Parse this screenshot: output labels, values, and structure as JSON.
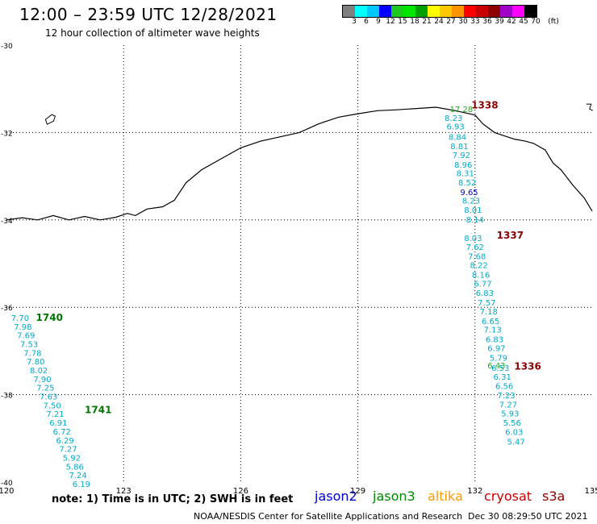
{
  "header": {
    "title": "12:00 – 23:59 UTC 12/28/2021",
    "subtitle": "12 hour collection of altimeter wave heights"
  },
  "legend": {
    "unit": "(ft)",
    "colors": [
      "#7f7f7f",
      "#00ffff",
      "#00c8ff",
      "#0000ff",
      "#1ec81e",
      "#00e600",
      "#00a000",
      "#ffff00",
      "#ffc800",
      "#ff9600",
      "#ff0000",
      "#c80000",
      "#8c0000",
      "#a000c8",
      "#ff00ff",
      "#000000"
    ],
    "labels": [
      "3",
      "6",
      "9",
      "12",
      "15",
      "18",
      "21",
      "24",
      "27",
      "30",
      "33",
      "36",
      "39",
      "42",
      "45",
      "70"
    ]
  },
  "axes": {
    "lon_labels": [
      "120",
      "123",
      "126",
      "129",
      "132",
      "135"
    ],
    "lat_labels": [
      "-30",
      "-32",
      "-34",
      "-36",
      "-38",
      "-40"
    ]
  },
  "passes": [
    {
      "id": "1338",
      "label_color": "#8b0000",
      "points": [
        {
          "lon": 131.65,
          "lat": -31.53,
          "v": "17.28",
          "c": "#22aa22"
        },
        {
          "lon": 131.45,
          "lat": -31.73,
          "v": "8.23",
          "c": "#00aacc"
        },
        {
          "lon": 131.5,
          "lat": -31.93,
          "v": "6.93",
          "c": "#00aacc"
        },
        {
          "lon": 131.55,
          "lat": -32.17,
          "v": "8.84",
          "c": "#00aacc"
        },
        {
          "lon": 131.6,
          "lat": -32.38,
          "v": "8.81",
          "c": "#00aacc"
        },
        {
          "lon": 131.65,
          "lat": -32.58,
          "v": "7.92",
          "c": "#00aacc"
        },
        {
          "lon": 131.7,
          "lat": -32.8,
          "v": "8.96",
          "c": "#00aacc"
        },
        {
          "lon": 131.75,
          "lat": -33.0,
          "v": "8.31",
          "c": "#00aacc"
        },
        {
          "lon": 131.8,
          "lat": -33.21,
          "v": "8.52",
          "c": "#00aacc"
        },
        {
          "lon": 131.85,
          "lat": -33.43,
          "v": "9.65",
          "c": "#0000cc"
        },
        {
          "lon": 131.9,
          "lat": -33.63,
          "v": "8.23",
          "c": "#00aacc"
        },
        {
          "lon": 131.95,
          "lat": -33.84,
          "v": "8.01",
          "c": "#00aacc"
        },
        {
          "lon": 132.0,
          "lat": -34.06,
          "v": "8.14",
          "c": "#00aacc"
        }
      ],
      "label": {
        "lon": 132.25,
        "lat": -31.45
      }
    },
    {
      "id": "1337",
      "label_color": "#8b0000",
      "points": [
        {
          "lon": 131.95,
          "lat": -34.48,
          "v": "8.03",
          "c": "#00aacc"
        },
        {
          "lon": 132.0,
          "lat": -34.69,
          "v": "7.62",
          "c": "#00aacc"
        },
        {
          "lon": 132.05,
          "lat": -34.9,
          "v": "7.68",
          "c": "#00aacc"
        },
        {
          "lon": 132.1,
          "lat": -35.1,
          "v": "8.22",
          "c": "#00aacc"
        },
        {
          "lon": 132.15,
          "lat": -35.32,
          "v": "8.16",
          "c": "#00aacc"
        },
        {
          "lon": 132.2,
          "lat": -35.53,
          "v": "6.77",
          "c": "#00aacc"
        },
        {
          "lon": 132.25,
          "lat": -35.74,
          "v": "6.83",
          "c": "#00aacc"
        },
        {
          "lon": 132.3,
          "lat": -35.96,
          "v": "7.57",
          "c": "#00aacc"
        },
        {
          "lon": 132.35,
          "lat": -36.16,
          "v": "7.18",
          "c": "#00aacc"
        },
        {
          "lon": 132.4,
          "lat": -36.38,
          "v": "6.65",
          "c": "#00aacc"
        },
        {
          "lon": 132.45,
          "lat": -36.58,
          "v": "7.13",
          "c": "#00aacc"
        },
        {
          "lon": 132.5,
          "lat": -36.8,
          "v": "6.83",
          "c": "#00aacc"
        },
        {
          "lon": 132.55,
          "lat": -37.0,
          "v": "6.97",
          "c": "#00aacc"
        },
        {
          "lon": 132.6,
          "lat": -37.22,
          "v": "5.79",
          "c": "#00aacc"
        }
      ],
      "label": {
        "lon": 132.9,
        "lat": -34.43
      }
    },
    {
      "id": "1336",
      "label_color": "#8b0000",
      "points": [
        {
          "lon": 132.55,
          "lat": -37.4,
          "v": "6.43",
          "c": "#22aa22"
        },
        {
          "lon": 132.65,
          "lat": -37.45,
          "v": "6.53",
          "c": "#00aacc"
        },
        {
          "lon": 132.7,
          "lat": -37.66,
          "v": "6.31",
          "c": "#00aacc"
        },
        {
          "lon": 132.75,
          "lat": -37.87,
          "v": "6.56",
          "c": "#00aacc"
        },
        {
          "lon": 132.8,
          "lat": -38.08,
          "v": "7.23",
          "c": "#00aacc"
        },
        {
          "lon": 132.85,
          "lat": -38.29,
          "v": "7.27",
          "c": "#00aacc"
        },
        {
          "lon": 132.9,
          "lat": -38.5,
          "v": "5.93",
          "c": "#00aacc"
        },
        {
          "lon": 132.95,
          "lat": -38.71,
          "v": "5.56",
          "c": "#00aacc"
        },
        {
          "lon": 133.0,
          "lat": -38.92,
          "v": "6.03",
          "c": "#00aacc"
        },
        {
          "lon": 133.05,
          "lat": -39.14,
          "v": "5.47",
          "c": "#00aacc"
        }
      ],
      "label": {
        "lon": 133.35,
        "lat": -37.43
      }
    },
    {
      "id": "1740",
      "label_color": "#007700",
      "points": [
        {
          "lon": 120.35,
          "lat": -36.31,
          "v": "7.70",
          "c": "#00aacc"
        },
        {
          "lon": 120.42,
          "lat": -36.51,
          "v": "7.98",
          "c": "#00aacc"
        },
        {
          "lon": 120.5,
          "lat": -36.71,
          "v": "7.69",
          "c": "#00aacc"
        },
        {
          "lon": 120.58,
          "lat": -36.91,
          "v": "7.53",
          "c": "#00aacc"
        },
        {
          "lon": 120.67,
          "lat": -37.11,
          "v": "7.78",
          "c": "#00aacc"
        },
        {
          "lon": 120.75,
          "lat": -37.31,
          "v": "7.80",
          "c": "#00aacc"
        },
        {
          "lon": 120.83,
          "lat": -37.51,
          "v": "8.02",
          "c": "#00aacc"
        },
        {
          "lon": 120.92,
          "lat": -37.71,
          "v": "7.90",
          "c": "#00aacc"
        },
        {
          "lon": 121.0,
          "lat": -37.91,
          "v": "7.25",
          "c": "#00aacc"
        },
        {
          "lon": 121.08,
          "lat": -38.11,
          "v": "7.63",
          "c": "#00aacc"
        },
        {
          "lon": 121.17,
          "lat": -38.31,
          "v": "7.50",
          "c": "#00aacc"
        }
      ],
      "label": {
        "lon": 121.1,
        "lat": -36.31
      }
    },
    {
      "id": "1741",
      "label_color": "#007700",
      "points": [
        {
          "lon": 121.25,
          "lat": -38.51,
          "v": "7.21",
          "c": "#00aacc"
        },
        {
          "lon": 121.33,
          "lat": -38.71,
          "v": "6.91",
          "c": "#00aacc"
        },
        {
          "lon": 121.42,
          "lat": -38.91,
          "v": "6.72",
          "c": "#00aacc"
        },
        {
          "lon": 121.5,
          "lat": -39.11,
          "v": "6.29",
          "c": "#00aacc"
        },
        {
          "lon": 121.58,
          "lat": -39.31,
          "v": "7.27",
          "c": "#00aacc"
        },
        {
          "lon": 121.67,
          "lat": -39.51,
          "v": "5.92",
          "c": "#00aacc"
        },
        {
          "lon": 121.75,
          "lat": -39.71,
          "v": "5.86",
          "c": "#00aacc"
        },
        {
          "lon": 121.83,
          "lat": -39.91,
          "v": "7.24",
          "c": "#00aacc"
        },
        {
          "lon": 121.92,
          "lat": -40.11,
          "v": "6.19",
          "c": "#00aacc"
        }
      ],
      "label": {
        "lon": 122.35,
        "lat": -38.42
      }
    }
  ],
  "coastline": [
    [
      120.0,
      -34.0
    ],
    [
      120.4,
      -33.95
    ],
    [
      120.8,
      -34.0
    ],
    [
      121.2,
      -33.9
    ],
    [
      121.6,
      -34.0
    ],
    [
      122.0,
      -33.92
    ],
    [
      122.4,
      -34.0
    ],
    [
      122.8,
      -33.94
    ],
    [
      123.1,
      -33.85
    ],
    [
      123.3,
      -33.9
    ],
    [
      123.6,
      -33.75
    ],
    [
      124.0,
      -33.7
    ],
    [
      124.3,
      -33.55
    ],
    [
      124.6,
      -33.15
    ],
    [
      125.0,
      -32.85
    ],
    [
      125.5,
      -32.6
    ],
    [
      126.0,
      -32.35
    ],
    [
      126.5,
      -32.2
    ],
    [
      127.0,
      -32.1
    ],
    [
      127.5,
      -32.0
    ],
    [
      128.0,
      -31.8
    ],
    [
      128.5,
      -31.65
    ],
    [
      129.0,
      -31.57
    ],
    [
      129.5,
      -31.5
    ],
    [
      130.0,
      -31.48
    ],
    [
      130.5,
      -31.45
    ],
    [
      131.0,
      -31.42
    ],
    [
      131.5,
      -31.5
    ],
    [
      132.0,
      -31.6
    ],
    [
      132.2,
      -31.8
    ],
    [
      132.5,
      -32.0
    ],
    [
      133.0,
      -32.15
    ],
    [
      133.3,
      -32.2
    ],
    [
      133.5,
      -32.25
    ],
    [
      133.8,
      -32.4
    ],
    [
      134.0,
      -32.7
    ],
    [
      134.2,
      -32.85
    ],
    [
      134.5,
      -33.2
    ],
    [
      134.8,
      -33.5
    ],
    [
      135.0,
      -33.8
    ]
  ],
  "footer": {
    "note": "note:  1) Time is in UTC;  2) SWH is in feet",
    "satellites": [
      {
        "name": "jason2",
        "color": "#0000cc"
      },
      {
        "name": "jason3",
        "color": "#008800"
      },
      {
        "name": "altika",
        "color": "#ff9900"
      },
      {
        "name": "cryosat",
        "color": "#cc0000"
      },
      {
        "name": "s3a",
        "color": "#8b0000"
      }
    ],
    "credit": "NOAA/NESDIS Center for Satellite Applications and Research",
    "generated": "Dec 30 08:29:50 UTC 2021"
  }
}
